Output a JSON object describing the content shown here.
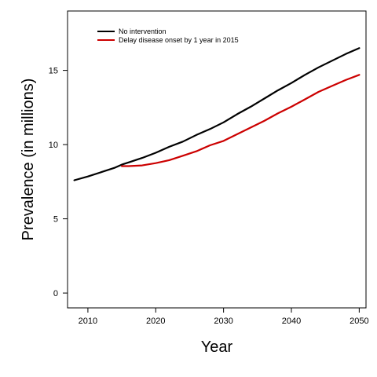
{
  "chart_data": {
    "type": "line",
    "title": "",
    "xlabel": "Year",
    "ylabel": "Prevalence (in millions)",
    "xlim": [
      2007,
      2051
    ],
    "ylim": [
      -1,
      19
    ],
    "xticks": [
      2010,
      2020,
      2030,
      2040,
      2050
    ],
    "yticks": [
      0,
      5,
      10,
      15
    ],
    "xtick_labels": [
      "2010",
      "2020",
      "2030",
      "2040",
      "2050"
    ],
    "ytick_labels": [
      "0",
      "5",
      "10",
      "15"
    ],
    "legend_position": "top-left",
    "grid": false,
    "series": [
      {
        "name": "No intervention",
        "color": "#000000",
        "x": [
          2008,
          2010,
          2012,
          2014,
          2015,
          2016,
          2018,
          2020,
          2022,
          2024,
          2026,
          2028,
          2030,
          2032,
          2034,
          2036,
          2038,
          2040,
          2042,
          2044,
          2046,
          2048,
          2050
        ],
        "y": [
          7.6,
          7.85,
          8.15,
          8.45,
          8.65,
          8.8,
          9.1,
          9.45,
          9.85,
          10.2,
          10.65,
          11.05,
          11.5,
          12.05,
          12.55,
          13.1,
          13.65,
          14.15,
          14.7,
          15.2,
          15.65,
          16.1,
          16.5
        ]
      },
      {
        "name": "Delay disease onset by 1 year in 2015",
        "color": "#cc0000",
        "x": [
          2015,
          2016,
          2018,
          2020,
          2022,
          2024,
          2026,
          2028,
          2030,
          2032,
          2034,
          2036,
          2038,
          2040,
          2042,
          2044,
          2046,
          2048,
          2050
        ],
        "y": [
          8.55,
          8.55,
          8.6,
          8.75,
          8.95,
          9.25,
          9.55,
          9.95,
          10.25,
          10.7,
          11.15,
          11.6,
          12.1,
          12.55,
          13.05,
          13.55,
          13.95,
          14.35,
          14.7
        ]
      }
    ]
  }
}
